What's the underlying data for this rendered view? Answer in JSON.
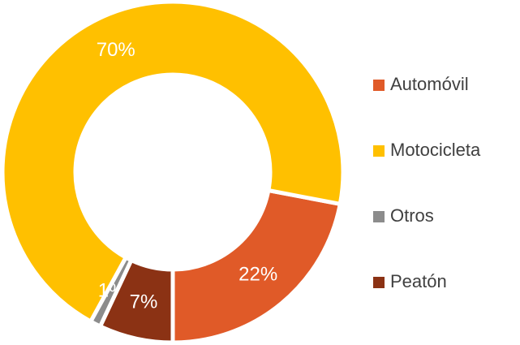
{
  "chart_data": {
    "type": "donut",
    "categories": [
      "Automóvil",
      "Motocicleta",
      "Otros",
      "Peatón"
    ],
    "values": [
      22,
      70,
      1,
      7
    ],
    "value_labels": [
      "22%",
      "70%",
      "1%",
      "7%"
    ],
    "colors": [
      "#e05a28",
      "#ffc000",
      "#8c8c8c",
      "#8b3214"
    ],
    "legend": "right"
  }
}
